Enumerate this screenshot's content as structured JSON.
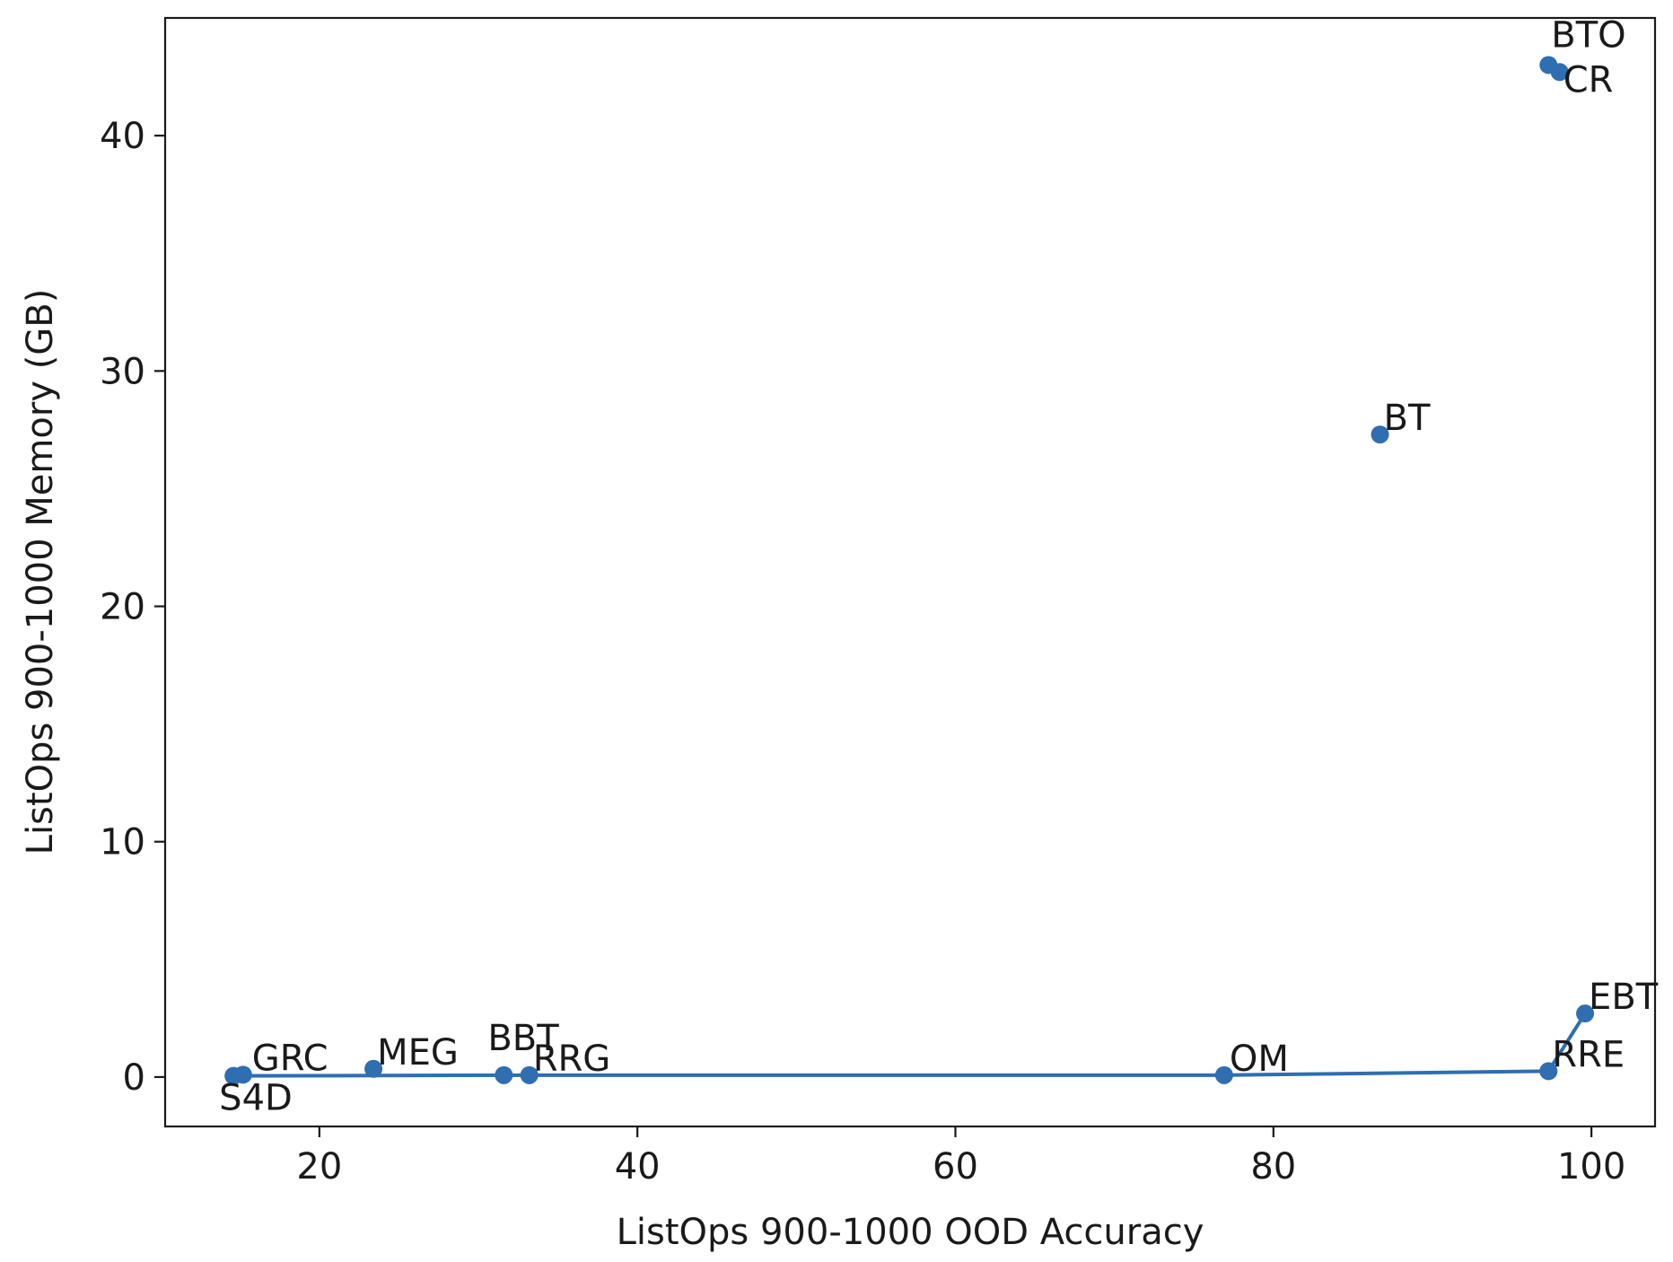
{
  "chart_data": {
    "type": "scatter",
    "xlabel": "ListOps 900-1000 OOD Accuracy",
    "ylabel": "ListOps 900-1000 Memory (GB)",
    "xlim": [
      10.3,
      104.0
    ],
    "ylim": [
      -2.1,
      45.0
    ],
    "xticks": [
      20,
      40,
      60,
      80,
      100
    ],
    "yticks": [
      0,
      10,
      20,
      30,
      40
    ],
    "grid": false,
    "color": "#2f6eb0",
    "points": [
      {
        "label": "GRC",
        "x": 15.2,
        "y": 0.1
      },
      {
        "label": "S4D",
        "x": 14.6,
        "y": 0.05
      },
      {
        "label": "MEG",
        "x": 23.4,
        "y": 0.35
      },
      {
        "label": "BBT",
        "x": 31.6,
        "y": 0.08
      },
      {
        "label": "RRG",
        "x": 33.2,
        "y": 0.08
      },
      {
        "label": "OM",
        "x": 76.9,
        "y": 0.08
      },
      {
        "label": "RRE",
        "x": 97.3,
        "y": 0.25
      },
      {
        "label": "EBT",
        "x": 99.6,
        "y": 2.7
      },
      {
        "label": "BT",
        "x": 86.7,
        "y": 27.3
      },
      {
        "label": "BTO",
        "x": 97.3,
        "y": 43.0
      },
      {
        "label": "CR",
        "x": 98.0,
        "y": 42.7
      }
    ],
    "frontier": [
      "S4D",
      "RRG",
      "OM",
      "RRE",
      "EBT"
    ]
  }
}
